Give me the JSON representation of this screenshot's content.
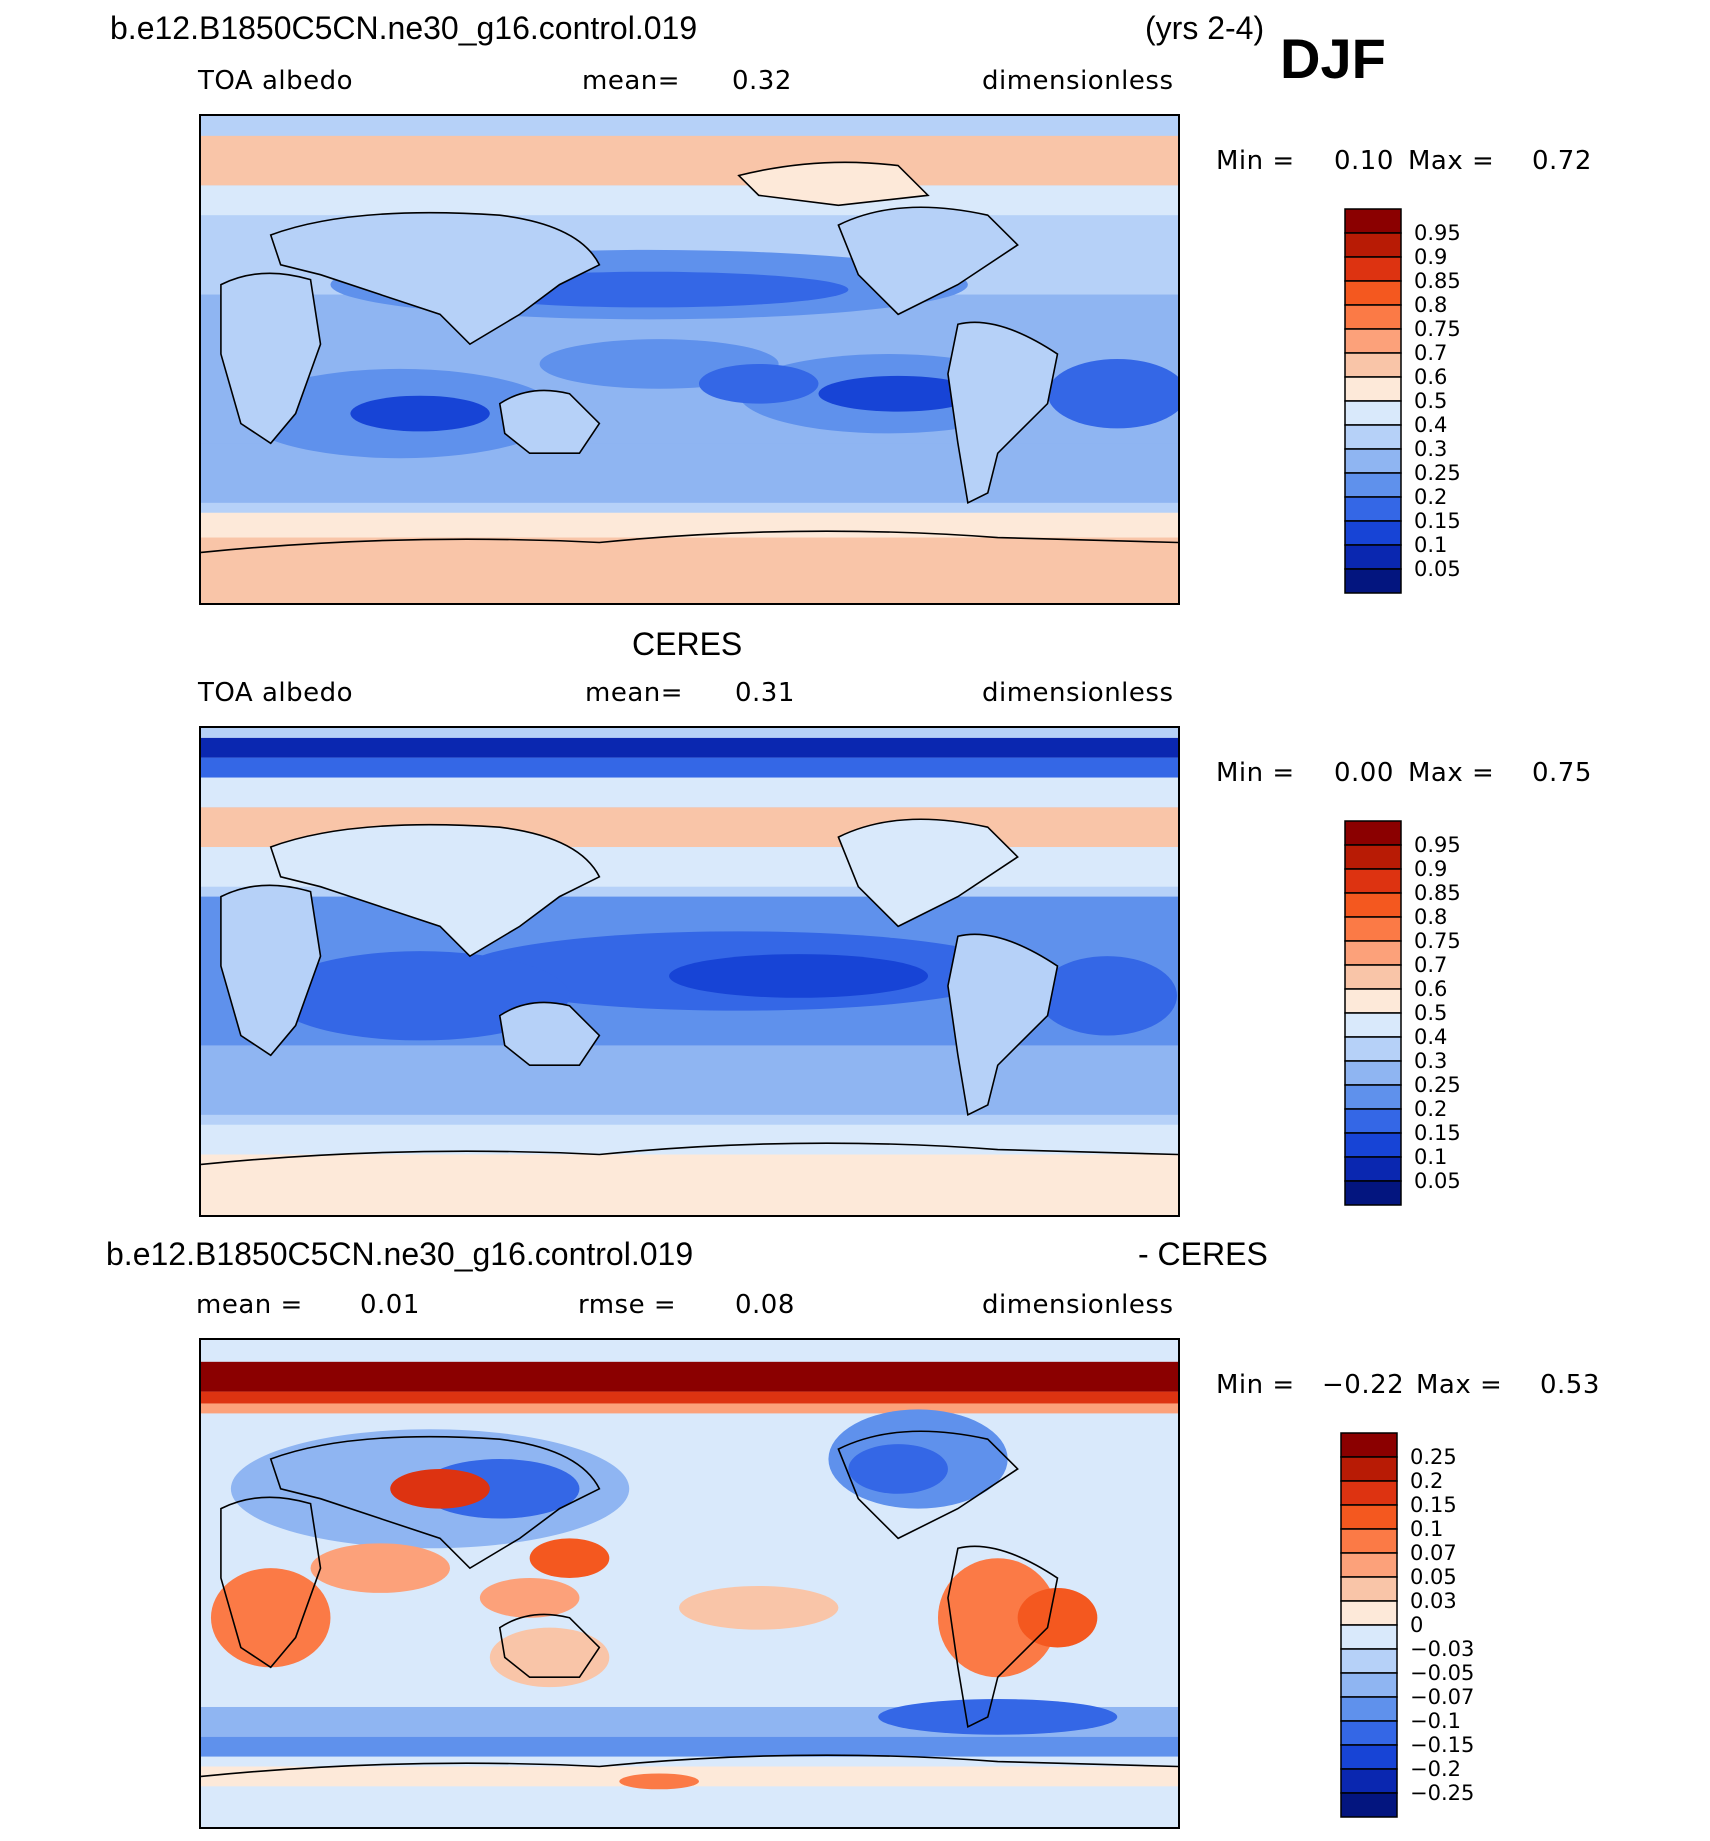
{
  "header": {
    "case_name": "b.e12.B1850C5CN.ne30_g16.control.019",
    "years": "(yrs 2-4)",
    "season": "DJF"
  },
  "panels": [
    {
      "id": "model",
      "title": "",
      "var_label": "TOA albedo",
      "mean_label": "mean=",
      "mean_value": "0.32",
      "units": "dimensionless",
      "min_label": "Min =",
      "min_value": "0.10",
      "max_label": "Max =",
      "max_value": "0.72",
      "colorbar_levels": [
        "0.95",
        "0.9",
        "0.85",
        "0.8",
        "0.75",
        "0.7",
        "0.6",
        "0.5",
        "0.4",
        "0.3",
        "0.25",
        "0.2",
        "0.15",
        "0.1",
        "0.05"
      ],
      "colorbar_colors": [
        "#8b0000",
        "#b81b05",
        "#dd3311",
        "#f4581f",
        "#fb7a46",
        "#fca17a",
        "#f9c5a8",
        "#fde9d9",
        "#d9e9fb",
        "#b6d1f8",
        "#8fb5f2",
        "#5f91ec",
        "#3467e6",
        "#1744d6",
        "#0a27b0",
        "#03157f"
      ]
    },
    {
      "id": "obs",
      "title": "CERES",
      "var_label": "TOA albedo",
      "mean_label": "mean=",
      "mean_value": "0.31",
      "units": "dimensionless",
      "min_label": "Min =",
      "min_value": "0.00",
      "max_label": "Max =",
      "max_value": "0.75",
      "colorbar_levels": [
        "0.95",
        "0.9",
        "0.85",
        "0.8",
        "0.75",
        "0.7",
        "0.6",
        "0.5",
        "0.4",
        "0.3",
        "0.25",
        "0.2",
        "0.15",
        "0.1",
        "0.05"
      ],
      "colorbar_colors": [
        "#8b0000",
        "#b81b05",
        "#dd3311",
        "#f4581f",
        "#fb7a46",
        "#fca17a",
        "#f9c5a8",
        "#fde9d9",
        "#d9e9fb",
        "#b6d1f8",
        "#8fb5f2",
        "#5f91ec",
        "#3467e6",
        "#1744d6",
        "#0a27b0",
        "#03157f"
      ]
    },
    {
      "id": "diff",
      "title_left": "b.e12.B1850C5CN.ne30_g16.control.019",
      "title_right": "- CERES",
      "mean_label": "mean =",
      "mean_value": "0.01",
      "rmse_label": "rmse =",
      "rmse_value": "0.08",
      "units": "dimensionless",
      "min_label": "Min =",
      "min_value": "−0.22",
      "max_label": "Max =",
      "max_value": "0.53",
      "colorbar_levels": [
        "0.25",
        "0.2",
        "0.15",
        "0.1",
        "0.07",
        "0.05",
        "0.03",
        "0",
        "−0.03",
        "−0.05",
        "−0.07",
        "−0.1",
        "−0.15",
        "−0.2",
        "−0.25"
      ],
      "colorbar_colors": [
        "#8b0000",
        "#b81b05",
        "#dd3311",
        "#f4581f",
        "#fb7a46",
        "#fca17a",
        "#f9c5a8",
        "#fde9d9",
        "#d9e9fb",
        "#b6d1f8",
        "#8fb5f2",
        "#5f91ec",
        "#3467e6",
        "#1744d6",
        "#0a27b0",
        "#03157f"
      ]
    }
  ]
}
